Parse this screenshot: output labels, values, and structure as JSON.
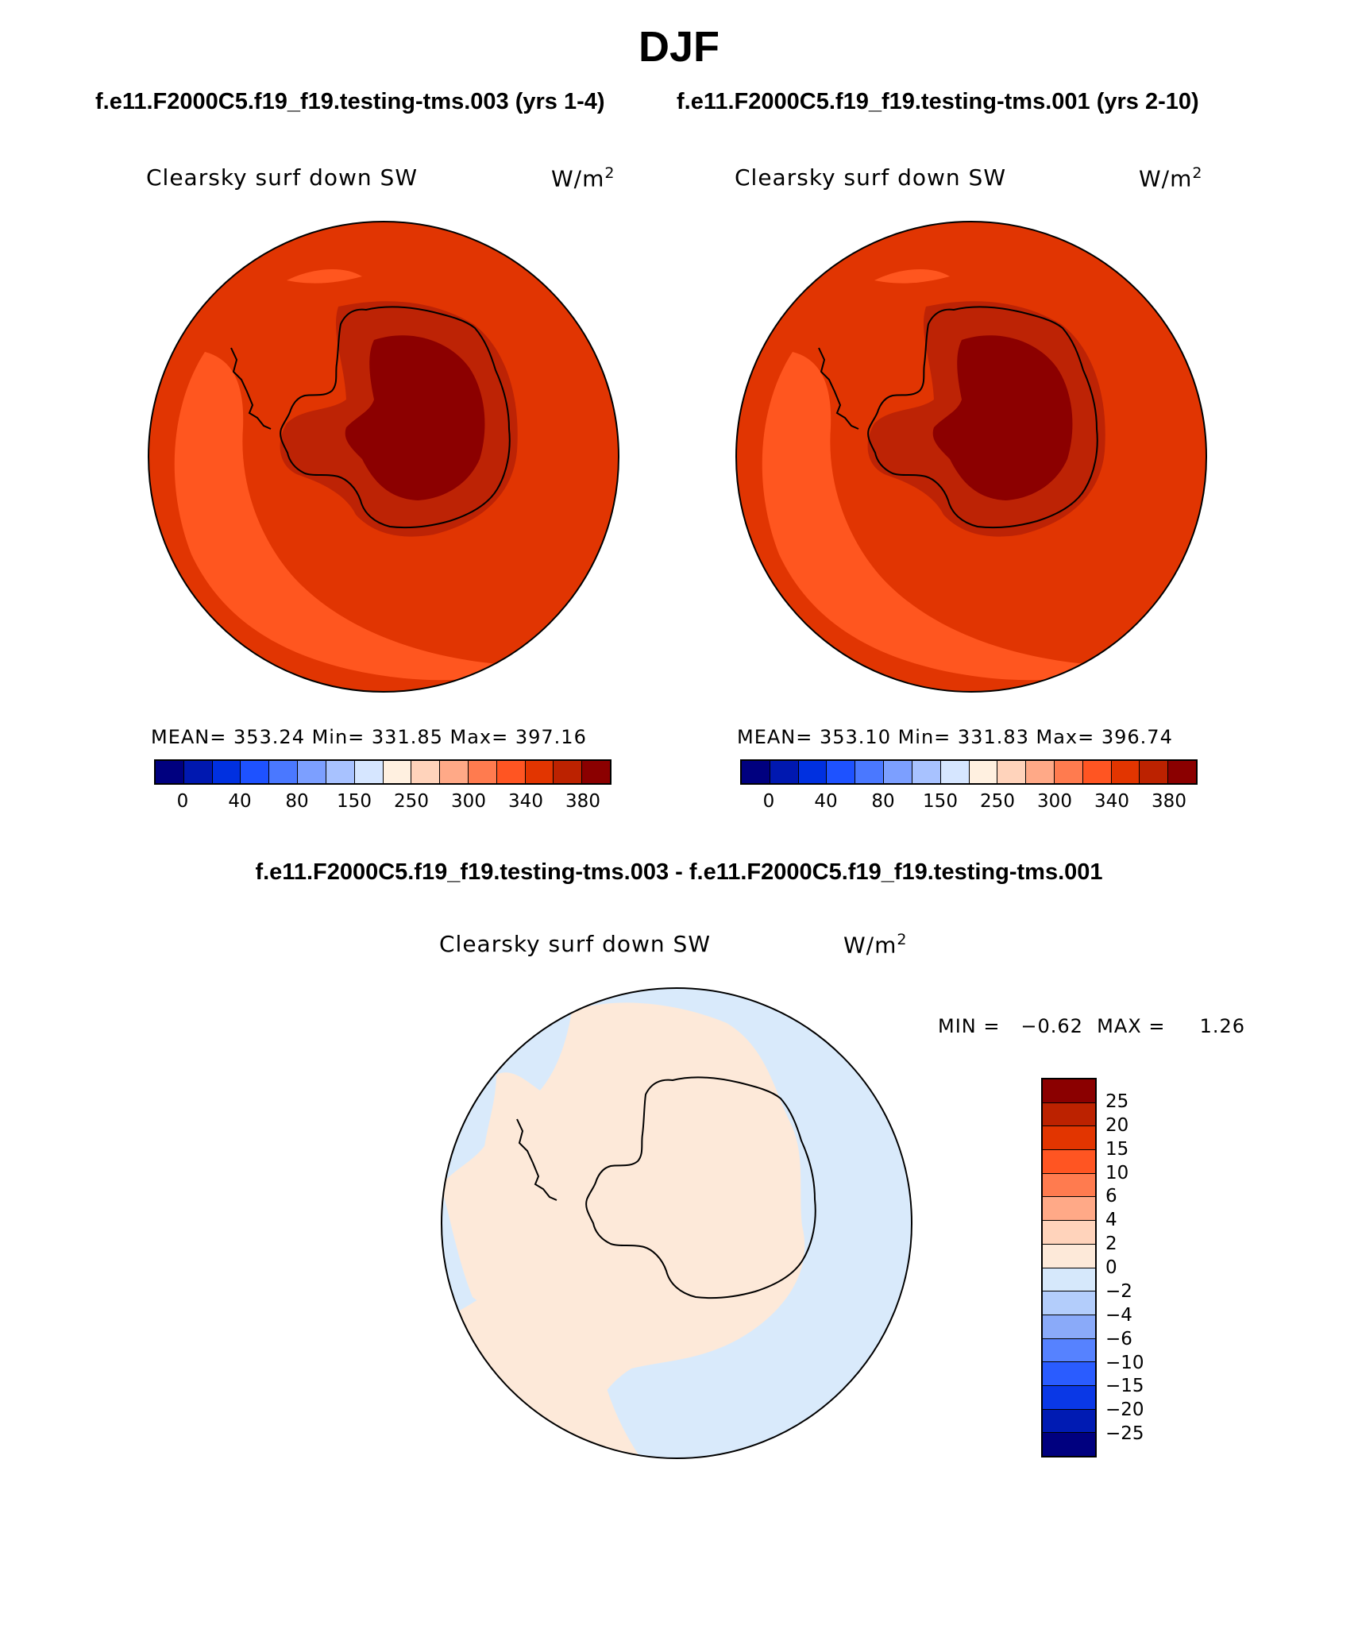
{
  "page": {
    "title": "DJF",
    "subtitle_a": "f.e11.F2000C5.f19_f19.testing-tms.003 (yrs 1-4)",
    "subtitle_b": "f.e11.F2000C5.f19_f19.testing-tms.001 (yrs 2-10)",
    "diff_title": "f.e11.F2000C5.f19_f19.testing-tms.003 - f.e11.F2000C5.f19_f19.testing-tms.001"
  },
  "panels": [
    {
      "variable": "Clearsky surf down SW",
      "units": "W/m",
      "units_sup": "2",
      "stats": "MEAN= 353.24   Min= 331.85   Max= 397.16"
    },
    {
      "variable": "Clearsky surf down SW",
      "units": "W/m",
      "units_sup": "2",
      "stats": "MEAN= 353.10   Min= 331.83   Max= 396.74"
    }
  ],
  "diff_panel": {
    "variable": "Clearsky surf down SW",
    "units": "W/m",
    "units_sup": "2",
    "stats": "MIN =   −0.62  MAX =     1.26"
  },
  "colorbar_main": {
    "colors": [
      "#00007f",
      "#0018b0",
      "#0030e0",
      "#1e52ff",
      "#4a78ff",
      "#7c9fff",
      "#a8c2ff",
      "#d6e6ff",
      "#fff0e0",
      "#ffd3bb",
      "#ffa987",
      "#ff7b4f",
      "#ff5522",
      "#e23500",
      "#bc2200",
      "#8b0000"
    ],
    "labels": [
      "0",
      "40",
      "80",
      "150",
      "250",
      "300",
      "340",
      "380"
    ]
  },
  "colorbar_diff": {
    "colors": [
      "#8b0000",
      "#bc2200",
      "#e23500",
      "#ff5522",
      "#ff7b4f",
      "#ffa987",
      "#ffd3bb",
      "#fde9d9",
      "#d6e8fb",
      "#b3cdfb",
      "#8aaaf9",
      "#5682ff",
      "#2a5cff",
      "#0a38e6",
      "#001bb3",
      "#00007f"
    ],
    "labels": [
      "25",
      "20",
      "15",
      "10",
      "6",
      "4",
      "2",
      "0",
      "−2",
      "−4",
      "−6",
      "−10",
      "−15",
      "−20",
      "−25"
    ]
  },
  "map_colors": {
    "ocean_base": "#e13502",
    "ocean_light": "#ff561f",
    "coast_band": "#bd2305",
    "interior": "#8c0000",
    "diff_neg": "#d9eafb",
    "diff_pos": "#fde9d9"
  }
}
